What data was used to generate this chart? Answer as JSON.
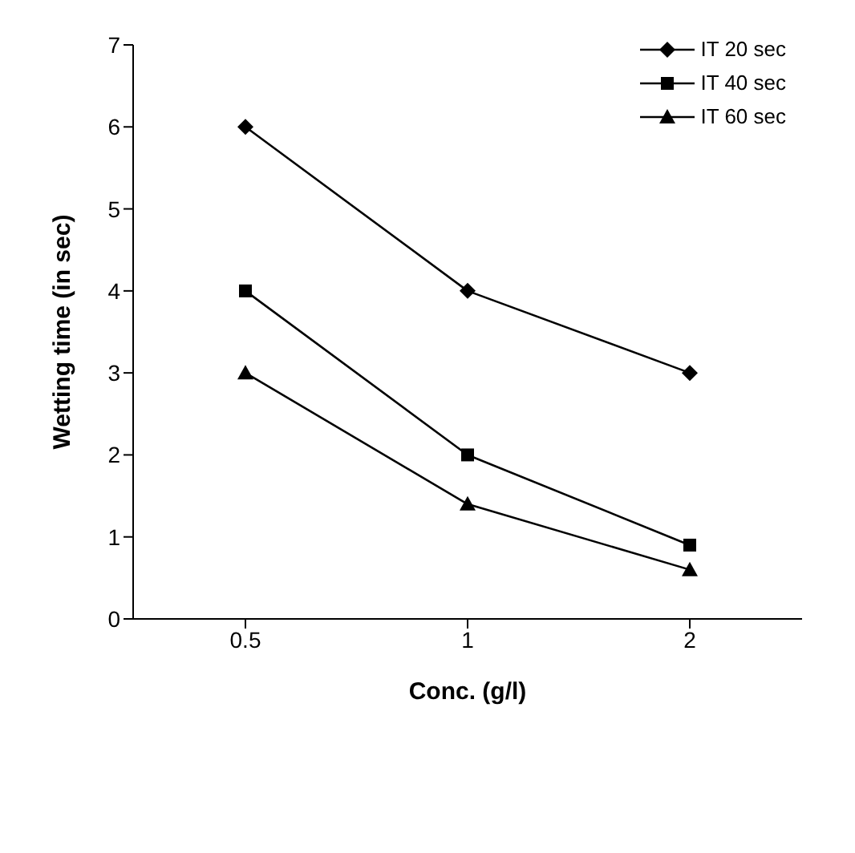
{
  "chart_data": {
    "type": "line",
    "xlabel": "Conc. (g/l)",
    "ylabel": "Wetting time (in sec)",
    "categories": [
      "0.5",
      "1",
      "2"
    ],
    "series": [
      {
        "name": "IT 20 sec",
        "color": "#000000",
        "marker": "diamond",
        "values": [
          6,
          4,
          3
        ]
      },
      {
        "name": "IT 40 sec",
        "color": "#000000",
        "marker": "square",
        "values": [
          4,
          2,
          0.9
        ]
      },
      {
        "name": "IT 60 sec",
        "color": "#000000",
        "marker": "triangle",
        "values": [
          3,
          1.4,
          0.6
        ]
      }
    ],
    "ylim": [
      0,
      7
    ],
    "yticks": [
      0,
      1,
      2,
      3,
      4,
      5,
      6,
      7
    ],
    "grid": false,
    "legend": "top right",
    "line_style": "solid"
  }
}
